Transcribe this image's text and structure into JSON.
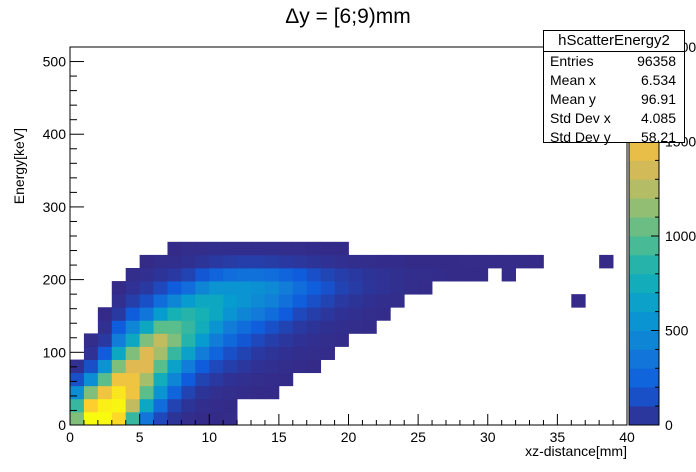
{
  "chart_data": {
    "type": "heatmap",
    "title": "Δy = [6;9)mm",
    "xlabel": "xz-distance[mm]",
    "ylabel": "Energy[keV]",
    "xlim": [
      0,
      40
    ],
    "ylim": [
      0,
      520
    ],
    "x_ticks": [
      "0",
      "5",
      "10",
      "15",
      "20",
      "25",
      "30",
      "35",
      "40"
    ],
    "y_ticks": [
      "0",
      "100",
      "200",
      "300",
      "400",
      "500"
    ],
    "colorbar_ticks": [
      "0",
      "500",
      "1000",
      "1500",
      "2000"
    ],
    "colorbar_range": [
      0,
      2000
    ],
    "bin_width_x": 1,
    "bin_width_y": 18,
    "bins": [
      {
        "x": 0,
        "y": 0,
        "v": 1100
      },
      {
        "x": 0,
        "y": 18,
        "v": 900
      },
      {
        "x": 0,
        "y": 36,
        "v": 500
      },
      {
        "x": 0,
        "y": 54,
        "v": 150
      },
      {
        "x": 0,
        "y": 72,
        "v": 20
      },
      {
        "x": 1,
        "y": 0,
        "v": 2000
      },
      {
        "x": 1,
        "y": 18,
        "v": 1600
      },
      {
        "x": 1,
        "y": 36,
        "v": 1100
      },
      {
        "x": 1,
        "y": 54,
        "v": 500
      },
      {
        "x": 1,
        "y": 72,
        "v": 150
      },
      {
        "x": 1,
        "y": 90,
        "v": 30
      },
      {
        "x": 1,
        "y": 108,
        "v": 10
      },
      {
        "x": 2,
        "y": 0,
        "v": 2000
      },
      {
        "x": 2,
        "y": 18,
        "v": 1900
      },
      {
        "x": 2,
        "y": 36,
        "v": 1500
      },
      {
        "x": 2,
        "y": 54,
        "v": 1000
      },
      {
        "x": 2,
        "y": 72,
        "v": 550
      },
      {
        "x": 2,
        "y": 90,
        "v": 200
      },
      {
        "x": 2,
        "y": 108,
        "v": 60
      },
      {
        "x": 2,
        "y": 126,
        "v": 20
      },
      {
        "x": 2,
        "y": 144,
        "v": 5
      },
      {
        "x": 3,
        "y": 0,
        "v": 1700
      },
      {
        "x": 3,
        "y": 18,
        "v": 1950
      },
      {
        "x": 3,
        "y": 36,
        "v": 1800
      },
      {
        "x": 3,
        "y": 54,
        "v": 1500
      },
      {
        "x": 3,
        "y": 72,
        "v": 1100
      },
      {
        "x": 3,
        "y": 90,
        "v": 700
      },
      {
        "x": 3,
        "y": 108,
        "v": 400
      },
      {
        "x": 3,
        "y": 126,
        "v": 200
      },
      {
        "x": 3,
        "y": 144,
        "v": 60
      },
      {
        "x": 3,
        "y": 162,
        "v": 20
      },
      {
        "x": 3,
        "y": 180,
        "v": 5
      },
      {
        "x": 4,
        "y": 0,
        "v": 900
      },
      {
        "x": 4,
        "y": 18,
        "v": 1300
      },
      {
        "x": 4,
        "y": 36,
        "v": 1500
      },
      {
        "x": 4,
        "y": 54,
        "v": 1500
      },
      {
        "x": 4,
        "y": 72,
        "v": 1400
      },
      {
        "x": 4,
        "y": 90,
        "v": 1100
      },
      {
        "x": 4,
        "y": 108,
        "v": 700
      },
      {
        "x": 4,
        "y": 126,
        "v": 450
      },
      {
        "x": 4,
        "y": 144,
        "v": 200
      },
      {
        "x": 4,
        "y": 162,
        "v": 80
      },
      {
        "x": 4,
        "y": 180,
        "v": 30
      },
      {
        "x": 4,
        "y": 198,
        "v": 10
      },
      {
        "x": 5,
        "y": 0,
        "v": 350
      },
      {
        "x": 5,
        "y": 18,
        "v": 700
      },
      {
        "x": 5,
        "y": 36,
        "v": 1000
      },
      {
        "x": 5,
        "y": 54,
        "v": 1200
      },
      {
        "x": 5,
        "y": 72,
        "v": 1400
      },
      {
        "x": 5,
        "y": 90,
        "v": 1400
      },
      {
        "x": 5,
        "y": 108,
        "v": 1100
      },
      {
        "x": 5,
        "y": 126,
        "v": 700
      },
      {
        "x": 5,
        "y": 144,
        "v": 350
      },
      {
        "x": 5,
        "y": 162,
        "v": 150
      },
      {
        "x": 5,
        "y": 180,
        "v": 60
      },
      {
        "x": 5,
        "y": 198,
        "v": 20
      },
      {
        "x": 5,
        "y": 216,
        "v": 5
      },
      {
        "x": 6,
        "y": 0,
        "v": 120
      },
      {
        "x": 6,
        "y": 18,
        "v": 300
      },
      {
        "x": 6,
        "y": 36,
        "v": 550
      },
      {
        "x": 6,
        "y": 54,
        "v": 750
      },
      {
        "x": 6,
        "y": 72,
        "v": 1000
      },
      {
        "x": 6,
        "y": 90,
        "v": 1200
      },
      {
        "x": 6,
        "y": 108,
        "v": 1300
      },
      {
        "x": 6,
        "y": 126,
        "v": 1000
      },
      {
        "x": 6,
        "y": 144,
        "v": 600
      },
      {
        "x": 6,
        "y": 162,
        "v": 300
      },
      {
        "x": 6,
        "y": 180,
        "v": 120
      },
      {
        "x": 6,
        "y": 198,
        "v": 40
      },
      {
        "x": 6,
        "y": 216,
        "v": 10
      },
      {
        "x": 7,
        "y": 0,
        "v": 40
      },
      {
        "x": 7,
        "y": 18,
        "v": 100
      },
      {
        "x": 7,
        "y": 36,
        "v": 250
      },
      {
        "x": 7,
        "y": 54,
        "v": 450
      },
      {
        "x": 7,
        "y": 72,
        "v": 650
      },
      {
        "x": 7,
        "y": 90,
        "v": 900
      },
      {
        "x": 7,
        "y": 108,
        "v": 1100
      },
      {
        "x": 7,
        "y": 126,
        "v": 1000
      },
      {
        "x": 7,
        "y": 144,
        "v": 800
      },
      {
        "x": 7,
        "y": 162,
        "v": 450
      },
      {
        "x": 7,
        "y": 180,
        "v": 200
      },
      {
        "x": 7,
        "y": 198,
        "v": 60
      },
      {
        "x": 7,
        "y": 216,
        "v": 15
      },
      {
        "x": 7,
        "y": 234,
        "v": 5
      },
      {
        "x": 8,
        "y": 0,
        "v": 10
      },
      {
        "x": 8,
        "y": 18,
        "v": 40
      },
      {
        "x": 8,
        "y": 36,
        "v": 100
      },
      {
        "x": 8,
        "y": 54,
        "v": 200
      },
      {
        "x": 8,
        "y": 72,
        "v": 400
      },
      {
        "x": 8,
        "y": 90,
        "v": 650
      },
      {
        "x": 8,
        "y": 108,
        "v": 850
      },
      {
        "x": 8,
        "y": 126,
        "v": 900
      },
      {
        "x": 8,
        "y": 144,
        "v": 850
      },
      {
        "x": 8,
        "y": 162,
        "v": 600
      },
      {
        "x": 8,
        "y": 180,
        "v": 300
      },
      {
        "x": 8,
        "y": 198,
        "v": 100
      },
      {
        "x": 8,
        "y": 216,
        "v": 25
      },
      {
        "x": 8,
        "y": 234,
        "v": 10
      },
      {
        "x": 9,
        "y": 0,
        "v": 5
      },
      {
        "x": 9,
        "y": 18,
        "v": 15
      },
      {
        "x": 9,
        "y": 36,
        "v": 40
      },
      {
        "x": 9,
        "y": 54,
        "v": 100
      },
      {
        "x": 9,
        "y": 72,
        "v": 200
      },
      {
        "x": 9,
        "y": 90,
        "v": 400
      },
      {
        "x": 9,
        "y": 108,
        "v": 600
      },
      {
        "x": 9,
        "y": 126,
        "v": 750
      },
      {
        "x": 9,
        "y": 144,
        "v": 800
      },
      {
        "x": 9,
        "y": 162,
        "v": 700
      },
      {
        "x": 9,
        "y": 180,
        "v": 450
      },
      {
        "x": 9,
        "y": 198,
        "v": 180
      },
      {
        "x": 9,
        "y": 216,
        "v": 40
      },
      {
        "x": 9,
        "y": 234,
        "v": 10
      },
      {
        "x": 10,
        "y": 0,
        "v": 3
      },
      {
        "x": 10,
        "y": 18,
        "v": 8
      },
      {
        "x": 10,
        "y": 36,
        "v": 20
      },
      {
        "x": 10,
        "y": 54,
        "v": 60
      },
      {
        "x": 10,
        "y": 72,
        "v": 120
      },
      {
        "x": 10,
        "y": 90,
        "v": 250
      },
      {
        "x": 10,
        "y": 108,
        "v": 400
      },
      {
        "x": 10,
        "y": 126,
        "v": 550
      },
      {
        "x": 10,
        "y": 144,
        "v": 700
      },
      {
        "x": 10,
        "y": 162,
        "v": 700
      },
      {
        "x": 10,
        "y": 180,
        "v": 550
      },
      {
        "x": 10,
        "y": 198,
        "v": 250
      },
      {
        "x": 10,
        "y": 216,
        "v": 60
      },
      {
        "x": 10,
        "y": 234,
        "v": 15
      },
      {
        "x": 11,
        "y": 0,
        "v": 2
      },
      {
        "x": 11,
        "y": 18,
        "v": 5
      },
      {
        "x": 11,
        "y": 36,
        "v": 12
      },
      {
        "x": 11,
        "y": 54,
        "v": 30
      },
      {
        "x": 11,
        "y": 72,
        "v": 80
      },
      {
        "x": 11,
        "y": 90,
        "v": 150
      },
      {
        "x": 11,
        "y": 108,
        "v": 280
      },
      {
        "x": 11,
        "y": 126,
        "v": 400
      },
      {
        "x": 11,
        "y": 144,
        "v": 550
      },
      {
        "x": 11,
        "y": 162,
        "v": 600
      },
      {
        "x": 11,
        "y": 180,
        "v": 550
      },
      {
        "x": 11,
        "y": 198,
        "v": 300
      },
      {
        "x": 11,
        "y": 216,
        "v": 70
      },
      {
        "x": 11,
        "y": 234,
        "v": 15
      },
      {
        "x": 12,
        "y": 36,
        "v": 8
      },
      {
        "x": 12,
        "y": 54,
        "v": 20
      },
      {
        "x": 12,
        "y": 72,
        "v": 50
      },
      {
        "x": 12,
        "y": 90,
        "v": 100
      },
      {
        "x": 12,
        "y": 108,
        "v": 180
      },
      {
        "x": 12,
        "y": 126,
        "v": 300
      },
      {
        "x": 12,
        "y": 144,
        "v": 450
      },
      {
        "x": 12,
        "y": 162,
        "v": 550
      },
      {
        "x": 12,
        "y": 180,
        "v": 550
      },
      {
        "x": 12,
        "y": 198,
        "v": 330
      },
      {
        "x": 12,
        "y": 216,
        "v": 80
      },
      {
        "x": 12,
        "y": 234,
        "v": 15
      },
      {
        "x": 13,
        "y": 36,
        "v": 5
      },
      {
        "x": 13,
        "y": 54,
        "v": 12
      },
      {
        "x": 13,
        "y": 72,
        "v": 30
      },
      {
        "x": 13,
        "y": 90,
        "v": 60
      },
      {
        "x": 13,
        "y": 108,
        "v": 120
      },
      {
        "x": 13,
        "y": 126,
        "v": 220
      },
      {
        "x": 13,
        "y": 144,
        "v": 380
      },
      {
        "x": 13,
        "y": 162,
        "v": 480
      },
      {
        "x": 13,
        "y": 180,
        "v": 520
      },
      {
        "x": 13,
        "y": 198,
        "v": 330
      },
      {
        "x": 13,
        "y": 216,
        "v": 80
      },
      {
        "x": 13,
        "y": 234,
        "v": 15
      },
      {
        "x": 14,
        "y": 36,
        "v": 3
      },
      {
        "x": 14,
        "y": 54,
        "v": 8
      },
      {
        "x": 14,
        "y": 72,
        "v": 20
      },
      {
        "x": 14,
        "y": 90,
        "v": 40
      },
      {
        "x": 14,
        "y": 108,
        "v": 80
      },
      {
        "x": 14,
        "y": 126,
        "v": 150
      },
      {
        "x": 14,
        "y": 144,
        "v": 300
      },
      {
        "x": 14,
        "y": 162,
        "v": 420
      },
      {
        "x": 14,
        "y": 180,
        "v": 480
      },
      {
        "x": 14,
        "y": 198,
        "v": 300
      },
      {
        "x": 14,
        "y": 216,
        "v": 70
      },
      {
        "x": 14,
        "y": 234,
        "v": 15
      },
      {
        "x": 15,
        "y": 54,
        "v": 5
      },
      {
        "x": 15,
        "y": 72,
        "v": 12
      },
      {
        "x": 15,
        "y": 90,
        "v": 25
      },
      {
        "x": 15,
        "y": 108,
        "v": 50
      },
      {
        "x": 15,
        "y": 126,
        "v": 100
      },
      {
        "x": 15,
        "y": 144,
        "v": 200
      },
      {
        "x": 15,
        "y": 162,
        "v": 320
      },
      {
        "x": 15,
        "y": 180,
        "v": 400
      },
      {
        "x": 15,
        "y": 198,
        "v": 250
      },
      {
        "x": 15,
        "y": 216,
        "v": 60
      },
      {
        "x": 15,
        "y": 234,
        "v": 10
      },
      {
        "x": 16,
        "y": 72,
        "v": 8
      },
      {
        "x": 16,
        "y": 90,
        "v": 15
      },
      {
        "x": 16,
        "y": 108,
        "v": 30
      },
      {
        "x": 16,
        "y": 126,
        "v": 60
      },
      {
        "x": 16,
        "y": 144,
        "v": 120
      },
      {
        "x": 16,
        "y": 162,
        "v": 220
      },
      {
        "x": 16,
        "y": 180,
        "v": 300
      },
      {
        "x": 16,
        "y": 198,
        "v": 200
      },
      {
        "x": 16,
        "y": 216,
        "v": 50
      },
      {
        "x": 16,
        "y": 234,
        "v": 10
      },
      {
        "x": 17,
        "y": 72,
        "v": 5
      },
      {
        "x": 17,
        "y": 90,
        "v": 10
      },
      {
        "x": 17,
        "y": 108,
        "v": 20
      },
      {
        "x": 17,
        "y": 126,
        "v": 40
      },
      {
        "x": 17,
        "y": 144,
        "v": 80
      },
      {
        "x": 17,
        "y": 162,
        "v": 150
      },
      {
        "x": 17,
        "y": 180,
        "v": 220
      },
      {
        "x": 17,
        "y": 198,
        "v": 150
      },
      {
        "x": 17,
        "y": 216,
        "v": 40
      },
      {
        "x": 17,
        "y": 234,
        "v": 8
      },
      {
        "x": 18,
        "y": 90,
        "v": 6
      },
      {
        "x": 18,
        "y": 108,
        "v": 12
      },
      {
        "x": 18,
        "y": 126,
        "v": 25
      },
      {
        "x": 18,
        "y": 144,
        "v": 50
      },
      {
        "x": 18,
        "y": 162,
        "v": 100
      },
      {
        "x": 18,
        "y": 180,
        "v": 160
      },
      {
        "x": 18,
        "y": 198,
        "v": 110
      },
      {
        "x": 18,
        "y": 216,
        "v": 30
      },
      {
        "x": 18,
        "y": 234,
        "v": 5
      },
      {
        "x": 19,
        "y": 108,
        "v": 8
      },
      {
        "x": 19,
        "y": 126,
        "v": 15
      },
      {
        "x": 19,
        "y": 144,
        "v": 30
      },
      {
        "x": 19,
        "y": 162,
        "v": 60
      },
      {
        "x": 19,
        "y": 180,
        "v": 100
      },
      {
        "x": 19,
        "y": 198,
        "v": 80
      },
      {
        "x": 19,
        "y": 216,
        "v": 20
      },
      {
        "x": 19,
        "y": 234,
        "v": 5
      },
      {
        "x": 20,
        "y": 126,
        "v": 10
      },
      {
        "x": 20,
        "y": 144,
        "v": 20
      },
      {
        "x": 20,
        "y": 162,
        "v": 40
      },
      {
        "x": 20,
        "y": 180,
        "v": 70
      },
      {
        "x": 20,
        "y": 198,
        "v": 60
      },
      {
        "x": 20,
        "y": 216,
        "v": 15
      },
      {
        "x": 21,
        "y": 126,
        "v": 6
      },
      {
        "x": 21,
        "y": 144,
        "v": 12
      },
      {
        "x": 21,
        "y": 162,
        "v": 25
      },
      {
        "x": 21,
        "y": 180,
        "v": 45
      },
      {
        "x": 21,
        "y": 198,
        "v": 40
      },
      {
        "x": 21,
        "y": 216,
        "v": 10
      },
      {
        "x": 22,
        "y": 144,
        "v": 8
      },
      {
        "x": 22,
        "y": 162,
        "v": 15
      },
      {
        "x": 22,
        "y": 180,
        "v": 30
      },
      {
        "x": 22,
        "y": 198,
        "v": 30
      },
      {
        "x": 22,
        "y": 216,
        "v": 8
      },
      {
        "x": 23,
        "y": 162,
        "v": 10
      },
      {
        "x": 23,
        "y": 180,
        "v": 20
      },
      {
        "x": 23,
        "y": 198,
        "v": 20
      },
      {
        "x": 23,
        "y": 216,
        "v": 6
      },
      {
        "x": 24,
        "y": 180,
        "v": 12
      },
      {
        "x": 24,
        "y": 198,
        "v": 14
      },
      {
        "x": 24,
        "y": 216,
        "v": 5
      },
      {
        "x": 25,
        "y": 180,
        "v": 8
      },
      {
        "x": 25,
        "y": 198,
        "v": 10
      },
      {
        "x": 25,
        "y": 216,
        "v": 4
      },
      {
        "x": 26,
        "y": 198,
        "v": 6
      },
      {
        "x": 26,
        "y": 216,
        "v": 3
      },
      {
        "x": 27,
        "y": 198,
        "v": 5
      },
      {
        "x": 27,
        "y": 216,
        "v": 3
      },
      {
        "x": 28,
        "y": 198,
        "v": 4
      },
      {
        "x": 28,
        "y": 216,
        "v": 2
      },
      {
        "x": 29,
        "y": 198,
        "v": 3
      },
      {
        "x": 29,
        "y": 216,
        "v": 2
      },
      {
        "x": 30,
        "y": 216,
        "v": 2
      },
      {
        "x": 31,
        "y": 198,
        "v": 2
      },
      {
        "x": 31,
        "y": 216,
        "v": 2
      },
      {
        "x": 32,
        "y": 216,
        "v": 2
      },
      {
        "x": 33,
        "y": 216,
        "v": 1
      },
      {
        "x": 36,
        "y": 162,
        "v": 1
      },
      {
        "x": 38,
        "y": 216,
        "v": 1
      }
    ],
    "stats": {
      "name": "hScatterEnergy2",
      "rows": [
        {
          "label": "Entries",
          "value": "96358"
        },
        {
          "label": "Mean x",
          "value": "6.534"
        },
        {
          "label": "Mean y",
          "value": "96.91"
        },
        {
          "label": "Std Dev x",
          "value": "4.085"
        },
        {
          "label": "Std Dev y",
          "value": "58.21"
        }
      ]
    }
  }
}
